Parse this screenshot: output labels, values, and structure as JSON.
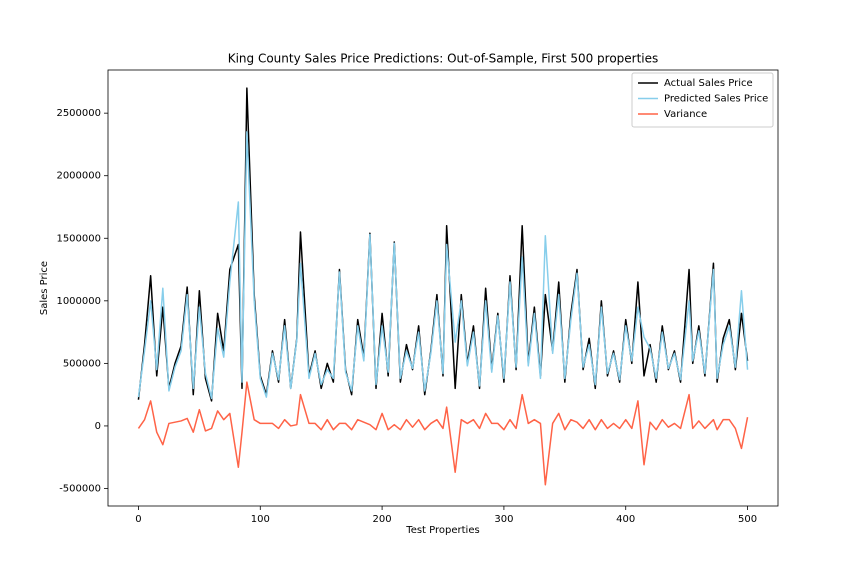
{
  "chart_data": {
    "type": "line",
    "title": "King County Sales Price Predictions: Out-of-Sample, First 500 properties",
    "xlabel": "Test Properties",
    "ylabel": "Sales Price",
    "x": [
      0,
      5,
      10,
      15,
      20,
      25,
      30,
      35,
      40,
      45,
      50,
      55,
      60,
      65,
      70,
      75,
      82,
      85,
      89,
      95,
      100,
      105,
      110,
      115,
      120,
      125,
      130,
      133,
      140,
      145,
      150,
      155,
      160,
      165,
      170,
      175,
      180,
      185,
      190,
      195,
      200,
      205,
      210,
      215,
      220,
      225,
      230,
      235,
      240,
      245,
      250,
      253,
      260,
      265,
      270,
      275,
      280,
      285,
      290,
      295,
      300,
      305,
      310,
      315,
      320,
      325,
      330,
      334,
      340,
      345,
      350,
      355,
      360,
      365,
      370,
      375,
      380,
      385,
      390,
      395,
      400,
      405,
      410,
      415,
      420,
      425,
      430,
      435,
      440,
      445,
      452,
      455,
      460,
      465,
      472,
      475,
      480,
      485,
      490,
      495,
      500
    ],
    "series": [
      {
        "name": "Actual Sales Price",
        "color": "#000000",
        "values": [
          210000,
          650000,
          1200000,
          400000,
          950000,
          300000,
          500000,
          640000,
          1110000,
          250000,
          1080000,
          380000,
          200000,
          900000,
          600000,
          1250000,
          1450000,
          300000,
          2700000,
          1050000,
          400000,
          250000,
          600000,
          350000,
          850000,
          300000,
          700000,
          1550000,
          400000,
          600000,
          300000,
          500000,
          350000,
          1250000,
          450000,
          250000,
          850000,
          550000,
          1540000,
          300000,
          900000,
          400000,
          1470000,
          350000,
          650000,
          450000,
          800000,
          250000,
          600000,
          1050000,
          400000,
          1600000,
          300000,
          1050000,
          500000,
          800000,
          300000,
          1100000,
          450000,
          900000,
          350000,
          1200000,
          450000,
          1600000,
          500000,
          950000,
          400000,
          1050000,
          600000,
          1150000,
          350000,
          900000,
          1250000,
          450000,
          700000,
          300000,
          1000000,
          400000,
          600000,
          350000,
          850000,
          500000,
          1150000,
          400000,
          650000,
          350000,
          800000,
          450000,
          600000,
          350000,
          1250000,
          500000,
          800000,
          400000,
          1300000,
          350000,
          700000,
          850000,
          450000,
          900000,
          520000
        ]
      },
      {
        "name": "Predicted Sales Price",
        "color": "#87ceeb",
        "values": [
          230000,
          600000,
          1000000,
          450000,
          1100000,
          280000,
          470000,
          600000,
          1050000,
          300000,
          950000,
          420000,
          220000,
          780000,
          550000,
          1150000,
          1790000,
          350000,
          2350000,
          1000000,
          380000,
          230000,
          580000,
          370000,
          800000,
          300000,
          690000,
          1300000,
          380000,
          580000,
          330000,
          450000,
          380000,
          1230000,
          430000,
          280000,
          800000,
          520000,
          1530000,
          330000,
          800000,
          430000,
          1460000,
          380000,
          600000,
          460000,
          750000,
          280000,
          580000,
          1000000,
          420000,
          1450000,
          670000,
          1000000,
          480000,
          750000,
          320000,
          1000000,
          430000,
          880000,
          380000,
          1150000,
          470000,
          1350000,
          480000,
          900000,
          380000,
          1520000,
          580000,
          1050000,
          380000,
          850000,
          1220000,
          470000,
          650000,
          330000,
          950000,
          420000,
          580000,
          370000,
          800000,
          520000,
          950000,
          710000,
          620000,
          380000,
          750000,
          460000,
          580000,
          370000,
          1000000,
          520000,
          760000,
          420000,
          1250000,
          380000,
          650000,
          800000,
          470000,
          1080000,
          450000
        ]
      },
      {
        "name": "Variance",
        "color": "#ff6347",
        "values": [
          -20000,
          50000,
          200000,
          -50000,
          -150000,
          20000,
          30000,
          40000,
          60000,
          -50000,
          130000,
          -40000,
          -20000,
          120000,
          50000,
          100000,
          -330000,
          -50000,
          350000,
          50000,
          20000,
          20000,
          20000,
          -20000,
          50000,
          0,
          10000,
          250000,
          20000,
          20000,
          -30000,
          50000,
          -30000,
          20000,
          20000,
          -30000,
          50000,
          30000,
          10000,
          -30000,
          100000,
          -30000,
          10000,
          -30000,
          50000,
          -10000,
          50000,
          -30000,
          20000,
          50000,
          -20000,
          150000,
          -370000,
          50000,
          20000,
          50000,
          -20000,
          100000,
          20000,
          20000,
          -30000,
          50000,
          -20000,
          250000,
          20000,
          50000,
          20000,
          -470000,
          20000,
          100000,
          -30000,
          50000,
          30000,
          -20000,
          50000,
          -30000,
          50000,
          -20000,
          20000,
          -20000,
          50000,
          -20000,
          200000,
          -310000,
          30000,
          -30000,
          50000,
          -10000,
          20000,
          -20000,
          250000,
          -20000,
          40000,
          -20000,
          50000,
          -30000,
          50000,
          50000,
          -20000,
          -180000,
          70000
        ]
      }
    ],
    "xlim": [
      -25,
      525
    ],
    "xticks": [
      0,
      100,
      200,
      300,
      400,
      500
    ],
    "ylim": [
      -640000,
      2845000
    ],
    "yticks": [
      -500000,
      0,
      500000,
      1000000,
      1500000,
      2000000,
      2500000
    ],
    "legend": "upper right",
    "grid": false
  }
}
